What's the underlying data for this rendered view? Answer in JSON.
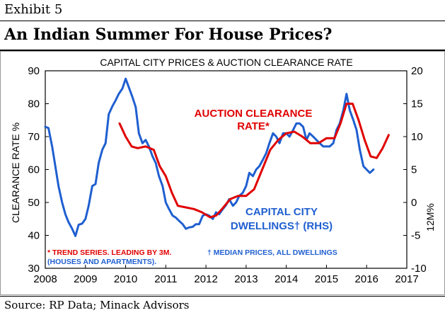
{
  "exhibit_label": "Exhibit 5",
  "headline": "An Indian Summer For House Prices?",
  "source": "Source: RP Data; Minack Advisors",
  "colors": {
    "clearance": "#e00000",
    "dwellings": "#1f5fd0",
    "axis": "#000000"
  },
  "chart_data": {
    "type": "line",
    "title": "CAPITAL CITY PRICES & AUCTION CLEARANCE RATE",
    "xlabel": "",
    "ylabel": "CLEARANCE RATE %",
    "ylabel_right": "12M%",
    "xlim": [
      2008,
      2017
    ],
    "ylim": [
      30,
      90
    ],
    "ylim_right": [
      -10,
      20
    ],
    "x_ticks": [
      2008,
      2009,
      2010,
      2011,
      2012,
      2013,
      2014,
      2015,
      2016,
      2017
    ],
    "y_ticks": [
      30,
      40,
      50,
      60,
      70,
      80,
      90
    ],
    "y_ticks_right": [
      -10,
      -5,
      0,
      5,
      10,
      15,
      20
    ],
    "annotations": {
      "clearance_line1": "AUCTION CLEARANCE",
      "clearance_line2": "RATE*",
      "dwellings_line1": "CAPITAL CITY",
      "dwellings_line2": "DWELLINGS†  (RHS)",
      "footnote_red": "* TREND SERIES.  LEADING BY 3M.",
      "footnote_blue_1": "† MEDIAN PRICES, ALL DWELLINGS",
      "footnote_blue_2": "(HOUSES AND APARTMENTS)."
    },
    "series": [
      {
        "name": "Auction clearance rate (trend, %, LHS)",
        "axis": "left",
        "color": "#e00000",
        "x": [
          2009.85,
          2010.0,
          2010.15,
          2010.3,
          2010.5,
          2010.7,
          2010.85,
          2011.0,
          2011.15,
          2011.3,
          2011.5,
          2011.7,
          2011.9,
          2012.1,
          2012.25,
          2012.4,
          2012.6,
          2012.8,
          2013.0,
          2013.2,
          2013.4,
          2013.6,
          2013.8,
          2014.0,
          2014.2,
          2014.4,
          2014.6,
          2014.8,
          2015.0,
          2015.2,
          2015.35,
          2015.5,
          2015.65,
          2015.8,
          2015.95,
          2016.1,
          2016.25,
          2016.4,
          2016.55
        ],
        "values": [
          74,
          70,
          67,
          66.5,
          67,
          66,
          61,
          58,
          53,
          49,
          48.5,
          48,
          47,
          45.5,
          46,
          48,
          51,
          52,
          52,
          54,
          60,
          66,
          69,
          71,
          71.5,
          70,
          68,
          68,
          69.5,
          69.5,
          74,
          80,
          80,
          75,
          69,
          64,
          63.5,
          66.5,
          70.5
        ]
      },
      {
        "name": "Capital city dwellings (median price, 12M%, RHS)",
        "axis": "right",
        "color": "#1f5fd0",
        "x": [
          2008.0,
          2008.08,
          2008.17,
          2008.25,
          2008.33,
          2008.42,
          2008.5,
          2008.58,
          2008.67,
          2008.75,
          2008.83,
          2008.92,
          2009.0,
          2009.08,
          2009.17,
          2009.25,
          2009.33,
          2009.42,
          2009.5,
          2009.58,
          2009.67,
          2009.75,
          2009.83,
          2009.92,
          2010.0,
          2010.08,
          2010.17,
          2010.25,
          2010.33,
          2010.42,
          2010.5,
          2010.58,
          2010.67,
          2010.75,
          2010.83,
          2010.92,
          2011.0,
          2011.08,
          2011.17,
          2011.25,
          2011.33,
          2011.42,
          2011.5,
          2011.58,
          2011.67,
          2011.75,
          2011.83,
          2011.92,
          2012.0,
          2012.08,
          2012.17,
          2012.25,
          2012.33,
          2012.42,
          2012.5,
          2012.58,
          2012.67,
          2012.75,
          2012.83,
          2012.92,
          2013.0,
          2013.08,
          2013.17,
          2013.25,
          2013.33,
          2013.42,
          2013.5,
          2013.58,
          2013.67,
          2013.75,
          2013.83,
          2013.92,
          2014.0,
          2014.08,
          2014.17,
          2014.25,
          2014.33,
          2014.42,
          2014.5,
          2014.58,
          2014.67,
          2014.75,
          2014.83,
          2014.92,
          2015.0,
          2015.08,
          2015.17,
          2015.25,
          2015.33,
          2015.42,
          2015.5,
          2015.58,
          2015.67,
          2015.75,
          2015.83,
          2015.92,
          2016.0,
          2016.08,
          2016.17
        ],
        "values": [
          11.5,
          11.3,
          8.5,
          5.5,
          2.5,
          0,
          -1.8,
          -3,
          -4,
          -5.1,
          -3.4,
          -3.2,
          -2.5,
          -0.5,
          2.5,
          2.8,
          6,
          8,
          9,
          13.4,
          14.6,
          15.5,
          16.5,
          17.3,
          18.8,
          17.5,
          16,
          14.5,
          10.5,
          9,
          9.5,
          8.5,
          7,
          6,
          4,
          2.5,
          0,
          -1,
          -2,
          -2.3,
          -2.8,
          -3.3,
          -4,
          -3.8,
          -3.7,
          -3.3,
          -3.3,
          -2,
          -1.8,
          -2,
          -2.5,
          -1.5,
          -1.8,
          -1,
          -0.4,
          0.5,
          -0.5,
          0,
          1,
          1.5,
          2.5,
          4.5,
          4,
          5,
          5.5,
          6.5,
          7.5,
          9,
          10.5,
          10,
          9,
          10.5,
          10.5,
          10,
          11,
          12,
          12,
          11.5,
          9.5,
          10.5,
          10,
          9.5,
          9,
          8.5,
          8.5,
          8.5,
          9,
          11,
          12,
          14,
          16.5,
          14,
          12.5,
          11,
          8,
          5.5,
          5,
          4.5,
          5
        ]
      }
    ]
  }
}
